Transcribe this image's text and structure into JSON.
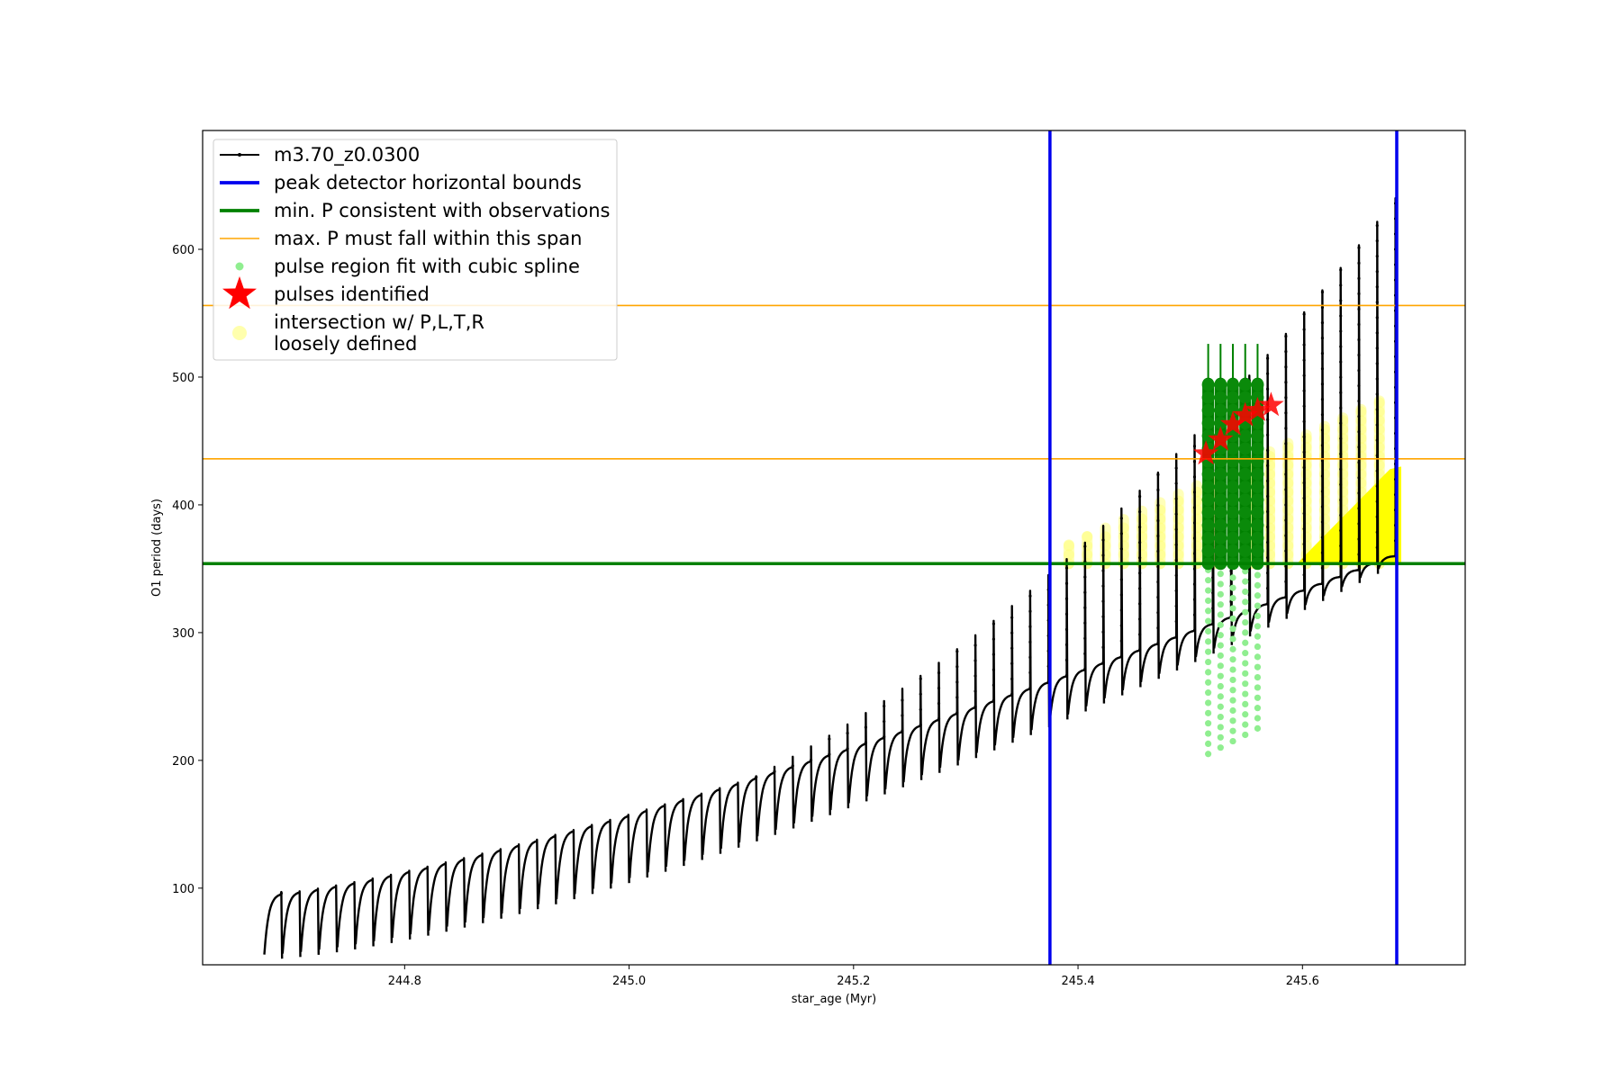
{
  "chart_data": {
    "type": "line",
    "xlabel": "star_age (Myr)",
    "ylabel": "O1 period (days)",
    "xlim": [
      244.62,
      245.745
    ],
    "ylim": [
      40,
      693
    ],
    "x_ticks": [
      244.8,
      245.0,
      245.2,
      245.4,
      245.6
    ],
    "x_tick_labels": [
      "244.8",
      "245.0",
      "245.2",
      "245.4",
      "245.6"
    ],
    "y_ticks": [
      100,
      200,
      300,
      400,
      500,
      600
    ],
    "y_tick_labels": [
      "100",
      "200",
      "300",
      "400",
      "500",
      "600"
    ],
    "grid": false,
    "legend_position": "top-left",
    "series": [
      {
        "name": "m3.70_z0.0300",
        "kind": "pulse-track",
        "color": "#000000",
        "x_start": 244.675,
        "x_end": 245.684,
        "pulse_count": 62,
        "baseline_start": 48,
        "baseline_end": 350,
        "peak_start": 97,
        "peak_end": 640
      },
      {
        "name": "peak detector horizontal bounds",
        "kind": "vline",
        "color": "#0000ee",
        "x": [
          245.375,
          245.684
        ]
      },
      {
        "name": "min. P consistent with observations",
        "kind": "hline",
        "color": "#008000",
        "y": 354
      },
      {
        "name": "max. P must fall within this span",
        "kind": "hline",
        "color": "#ffa500",
        "y": [
          436,
          556
        ]
      },
      {
        "name": "pulse region fit with cubic spline",
        "kind": "points",
        "color": "#90ee90",
        "x": [
          245.516,
          245.527,
          245.538,
          245.549,
          245.56
        ],
        "y_low": [
          205,
          210,
          215,
          220,
          225
        ],
        "y_high": [
          350,
          350,
          350,
          350,
          350
        ]
      },
      {
        "name": "pulses identified",
        "kind": "stars",
        "color": "#ff0000",
        "x": [
          245.514,
          245.527,
          245.538,
          245.549,
          245.56,
          245.572
        ],
        "y": [
          440,
          451,
          463,
          470,
          474,
          478
        ]
      },
      {
        "name": "intersection w/ P,L,T,R\nloosely defined",
        "kind": "intersection",
        "color": "#ffff00",
        "x_start": 245.382,
        "x_end": 245.684,
        "y_floor": 354,
        "y_low": [
          363,
          430
        ],
        "y_high": [
          365,
          488
        ]
      }
    ],
    "highlight": {
      "dark_green_columns_x": [
        245.516,
        245.527,
        245.538,
        245.549,
        245.56
      ],
      "dark_green_y_low": 354,
      "dark_green_y_high": 495,
      "dark_green_whisker_top": 526
    }
  }
}
